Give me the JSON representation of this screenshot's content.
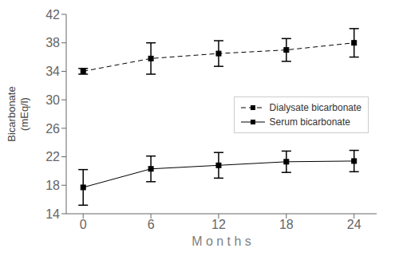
{
  "chart_data": {
    "type": "line",
    "xlabel": "M o n t h s",
    "ylabel": "Bicarbonate\n(mEq/l)",
    "x": [
      0,
      6,
      12,
      18,
      24
    ],
    "series": [
      {
        "name": "Dialysate bicarbonate",
        "color": "black",
        "marker": "square",
        "line_style": "dashed",
        "values": [
          34.0,
          35.8,
          36.5,
          37.0,
          38.0
        ],
        "errors": [
          0.4,
          2.2,
          1.8,
          1.6,
          2.0
        ]
      },
      {
        "name": "Serum bicarbonate",
        "color": "black",
        "marker": "square",
        "line_style": "solid",
        "values": [
          17.7,
          20.3,
          20.8,
          21.3,
          21.4
        ],
        "errors": [
          2.5,
          1.8,
          1.8,
          1.5,
          1.5
        ]
      }
    ],
    "xlim": [
      -1.5,
      26
    ],
    "xticks": [
      0,
      6,
      12,
      18,
      24
    ],
    "ylim": [
      14,
      42
    ],
    "yticks": [
      14,
      18,
      22,
      26,
      30,
      34,
      38,
      42
    ],
    "grid": false,
    "legend": "right"
  }
}
